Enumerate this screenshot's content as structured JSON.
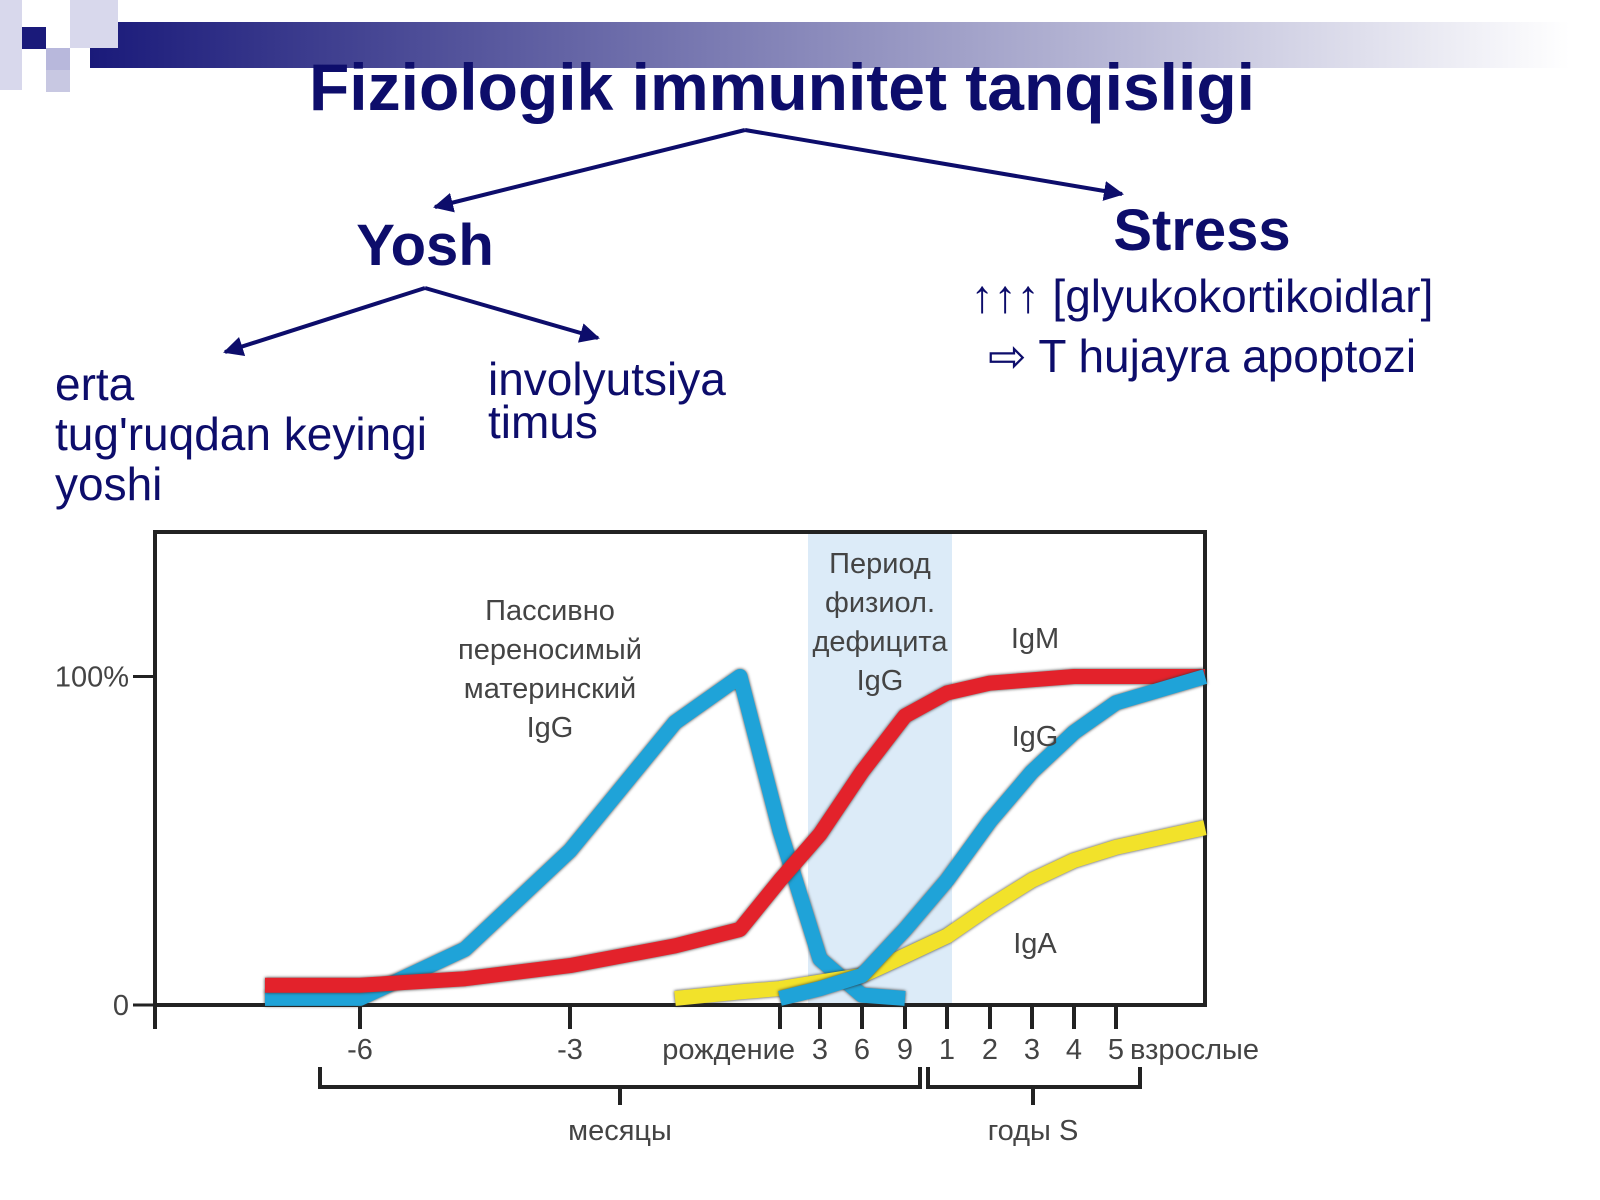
{
  "header": {
    "title": "Fiziologik immunitet tanqisligi"
  },
  "branches": {
    "age": {
      "label": "Yosh",
      "early": [
        "erta",
        "tug'ruqdan keyingi",
        "yoshi"
      ],
      "thymus": [
        "involyutsiya",
        "timus"
      ]
    },
    "stress": {
      "label": "Stress",
      "lines": [
        "↑↑↑ [glyukokortikoidlar]",
        "⇨  T hujayra apoptozi"
      ]
    }
  },
  "chart_data": {
    "type": "line",
    "categories": [
      null,
      "-6",
      null,
      "-3",
      null,
      null,
      "рождение",
      "3",
      "6",
      "9",
      "1",
      "2",
      "3",
      "4",
      "5",
      "взрослые"
    ],
    "x_groups": [
      "месяцы",
      "годы S"
    ],
    "annotations": [
      "Период физиол. дефицита IgG"
    ],
    "ylim": [
      0,
      144
    ],
    "yticks": [
      0,
      {
        "value": 100,
        "label": "100%"
      }
    ],
    "series": [
      {
        "name": "Пассивно переносимый материнский IgG",
        "color": "#1fa3d8",
        "values": [
          2,
          2,
          17,
          47,
          86,
          100,
          53,
          14,
          3,
          2,
          null,
          null,
          null,
          null,
          null,
          null
        ]
      },
      {
        "name": "IgM",
        "color": "#e3222b",
        "values": [
          6,
          6,
          8,
          12,
          18,
          23,
          38,
          52,
          71,
          88,
          95,
          98,
          99,
          100,
          100,
          100
        ]
      },
      {
        "name": "IgA",
        "color": "#f2e22a",
        "values": [
          null,
          null,
          null,
          null,
          2,
          4,
          5,
          7,
          9,
          15,
          21,
          30,
          38,
          44,
          48,
          54
        ]
      },
      {
        "name": "IgG",
        "color": "#1fa3d8",
        "values": [
          null,
          null,
          null,
          null,
          null,
          null,
          2,
          5,
          9,
          23,
          38,
          56,
          71,
          83,
          92,
          100
        ]
      }
    ]
  }
}
